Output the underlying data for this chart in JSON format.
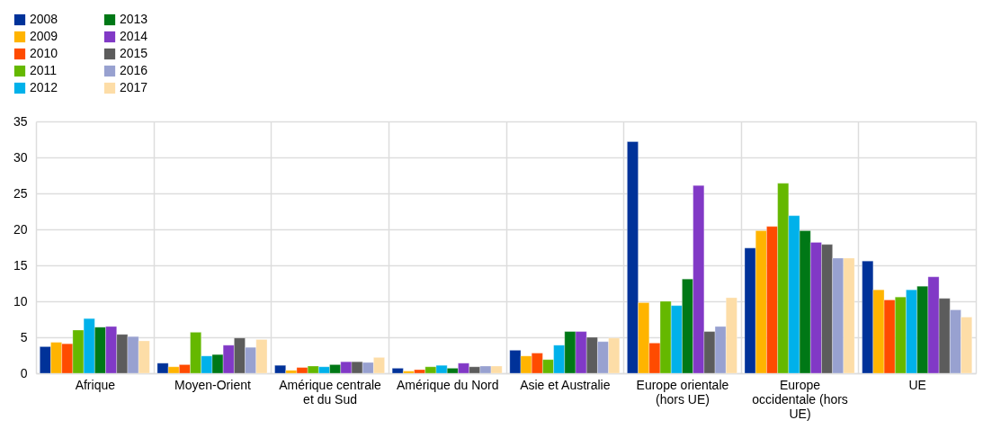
{
  "chart_data": {
    "type": "bar",
    "categories": [
      "Afrique",
      "Moyen-Orient",
      "Amérique centrale et du Sud",
      "Amérique du Nord",
      "Asie et Australie",
      "Europe orientale (hors UE)",
      "Europe occidentale (hors UE)",
      "UE"
    ],
    "series": [
      {
        "name": "2008",
        "color": "#003299",
        "values": [
          3.7,
          1.4,
          1.1,
          0.7,
          3.2,
          32.2,
          17.4,
          15.6
        ]
      },
      {
        "name": "2009",
        "color": "#ffb400",
        "values": [
          4.3,
          0.9,
          0.4,
          0.3,
          2.4,
          9.8,
          19.8,
          11.6
        ]
      },
      {
        "name": "2010",
        "color": "#ff4b00",
        "values": [
          4.1,
          1.2,
          0.8,
          0.5,
          2.8,
          4.2,
          20.4,
          10.2
        ]
      },
      {
        "name": "2011",
        "color": "#65b800",
        "values": [
          6.0,
          5.7,
          1.0,
          0.9,
          1.9,
          10.0,
          26.4,
          10.6
        ]
      },
      {
        "name": "2012",
        "color": "#00b1ea",
        "values": [
          7.6,
          2.4,
          0.9,
          1.1,
          3.9,
          9.4,
          21.9,
          11.6
        ]
      },
      {
        "name": "2013",
        "color": "#007816",
        "values": [
          6.4,
          2.6,
          1.2,
          0.7,
          5.8,
          13.1,
          19.8,
          12.1
        ]
      },
      {
        "name": "2014",
        "color": "#8139c6",
        "values": [
          6.5,
          3.9,
          1.6,
          1.4,
          5.8,
          26.1,
          18.2,
          13.4
        ]
      },
      {
        "name": "2015",
        "color": "#5c5c5c",
        "values": [
          5.4,
          4.9,
          1.6,
          0.9,
          5.0,
          5.8,
          17.9,
          10.4
        ]
      },
      {
        "name": "2016",
        "color": "#98a1d0",
        "values": [
          5.1,
          3.6,
          1.5,
          1.0,
          4.4,
          6.5,
          16.0,
          8.8
        ]
      },
      {
        "name": "2017",
        "color": "#fddda7",
        "values": [
          4.5,
          4.7,
          2.2,
          1.0,
          4.9,
          10.5,
          16.0,
          7.8
        ]
      }
    ],
    "ylim": [
      0,
      35
    ],
    "yticks": [
      0,
      5,
      10,
      15,
      20,
      25,
      30,
      35
    ],
    "grid": true,
    "legend": "top left"
  }
}
